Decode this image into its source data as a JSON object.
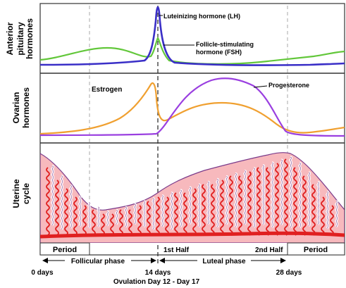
{
  "rows": {
    "anterior_pituitary": [
      "Anterior",
      "pituitary",
      "hormones"
    ],
    "ovarian": [
      "Ovarian",
      "hormones"
    ],
    "uterine": [
      "Uterine",
      "cycle"
    ]
  },
  "hormones": {
    "lh_label": "Luteinizing hormone (LH)",
    "fsh_label_1": "Follicle-stimulating",
    "fsh_label_2": "hormone (FSH)",
    "estrogen_label": "Estrogen",
    "progesterone_label": "Progesterone"
  },
  "colors": {
    "lh": "#3a2fc7",
    "fsh": "#62c73a",
    "estrogen": "#f0a030",
    "progesterone": "#9a3fe0",
    "endometrium": "#f7b9bd",
    "vessel": "#e02020",
    "divider": "#888888"
  },
  "phases": {
    "period_left": "Period",
    "first_half": "1st Half",
    "second_half": "2nd Half",
    "period_right": "Period",
    "follicular": "Follicular phase",
    "luteal": "Luteal phase"
  },
  "days": {
    "d0": "0 days",
    "d14": "14 days",
    "d28": "28 days",
    "ovulation": "Ovulation Day 12 - Day 17"
  }
}
